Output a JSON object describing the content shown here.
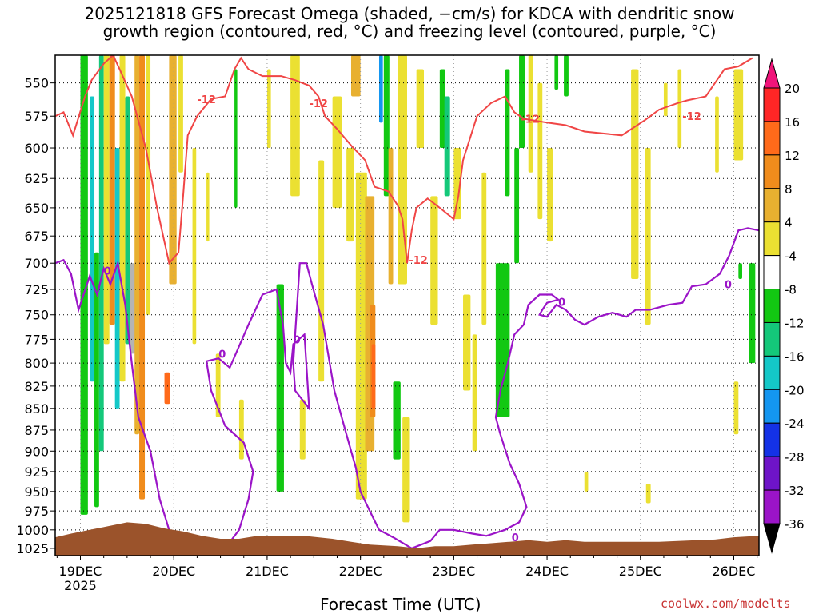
{
  "title": {
    "line1": "2025121818 GFS Forecast Omega (shaded, −cm/s) for KDCA with dendritic snow",
    "line2": "growth region (contoured, red, °C) and freezing level (contoured, purple, °C)"
  },
  "x_axis_label": "Forecast Time (UTC)",
  "credit": "coolwx.com/modelts",
  "colors": {
    "dgz_contour": "#f04646",
    "freezing_contour": "#9b14c8",
    "terrain": "#9b532b",
    "grid": "#000000"
  },
  "chart_data": {
    "type": "heatmap",
    "x_ticks": [
      {
        "label": "19DEC",
        "sub": "2025",
        "day": 0
      },
      {
        "label": "20DEC",
        "sub": "",
        "day": 1
      },
      {
        "label": "21DEC",
        "sub": "",
        "day": 2
      },
      {
        "label": "22DEC",
        "sub": "",
        "day": 3
      },
      {
        "label": "23DEC",
        "sub": "",
        "day": 4
      },
      {
        "label": "24DEC",
        "sub": "",
        "day": 5
      },
      {
        "label": "25DEC",
        "sub": "",
        "day": 6
      },
      {
        "label": "26DEC",
        "sub": "",
        "day": 7
      }
    ],
    "x_range_days": [
      -0.27,
      7.27
    ],
    "y_ticks": [
      550,
      575,
      600,
      625,
      650,
      675,
      700,
      725,
      750,
      775,
      800,
      825,
      850,
      875,
      900,
      925,
      950,
      975,
      1000,
      1025
    ],
    "y_range_hpa": [
      530,
      1035
    ],
    "y_scale": "log-pressure",
    "colorbar": {
      "labels": [
        "20",
        "16",
        "12",
        "8",
        "4",
        "-4",
        "-8",
        "-12",
        "-16",
        "-20",
        "-24",
        "-28",
        "-32",
        "-36"
      ],
      "colors": [
        "#ff2626",
        "#ff6a1a",
        "#f08c1c",
        "#e8b030",
        "#ebe032",
        "#ffffff",
        "#12c812",
        "#14c87a",
        "#14c8c8",
        "#1496f0",
        "#1432e6",
        "#6e14c8",
        "#9b14c8",
        "#b4b4b4"
      ],
      "top_arrow_color": "#f0147a",
      "bottom_arrow_color": "#000000"
    },
    "contour_labels": {
      "dgz": "-12",
      "freezing": "0"
    },
    "dgz_contour": [
      [
        -0.27,
        575
      ],
      [
        -0.18,
        572
      ],
      [
        -0.08,
        590
      ],
      [
        0.05,
        560
      ],
      [
        0.12,
        548
      ],
      [
        0.25,
        536
      ],
      [
        0.35,
        530
      ],
      [
        0.42,
        540
      ],
      [
        0.55,
        560
      ],
      [
        0.7,
        600
      ],
      [
        0.82,
        650
      ],
      [
        0.95,
        700
      ],
      [
        1.05,
        690
      ],
      [
        1.1,
        640
      ],
      [
        1.15,
        590
      ],
      [
        1.25,
        575
      ],
      [
        1.4,
        562
      ],
      [
        1.55,
        560
      ],
      [
        1.65,
        540
      ],
      [
        1.72,
        532
      ],
      [
        1.8,
        540
      ],
      [
        1.95,
        545
      ],
      [
        2.15,
        545
      ],
      [
        2.3,
        548
      ],
      [
        2.45,
        552
      ],
      [
        2.55,
        560
      ],
      [
        2.62,
        575
      ],
      [
        2.75,
        585
      ],
      [
        2.9,
        598
      ],
      [
        3.05,
        610
      ],
      [
        3.15,
        632
      ],
      [
        3.3,
        636
      ],
      [
        3.4,
        648
      ],
      [
        3.45,
        660
      ],
      [
        3.5,
        700
      ],
      [
        3.55,
        670
      ],
      [
        3.6,
        650
      ],
      [
        3.72,
        642
      ],
      [
        3.85,
        650
      ],
      [
        4.0,
        660
      ],
      [
        4.05,
        640
      ],
      [
        4.1,
        610
      ],
      [
        4.25,
        575
      ],
      [
        4.4,
        565
      ],
      [
        4.55,
        560
      ],
      [
        4.65,
        572
      ],
      [
        4.75,
        577
      ],
      [
        5.0,
        580
      ],
      [
        5.2,
        582
      ],
      [
        5.4,
        587
      ],
      [
        5.8,
        590
      ],
      [
        6.05,
        578
      ],
      [
        6.2,
        570
      ],
      [
        6.4,
        565
      ],
      [
        6.5,
        563
      ],
      [
        6.7,
        560
      ],
      [
        6.8,
        550
      ],
      [
        6.9,
        540
      ],
      [
        7.05,
        538
      ],
      [
        7.2,
        532
      ]
    ],
    "freezing_contour": [
      [
        -0.27,
        700
      ],
      [
        -0.18,
        697
      ],
      [
        -0.1,
        710
      ],
      [
        -0.02,
        745
      ],
      [
        0.1,
        712
      ],
      [
        0.18,
        730
      ],
      [
        0.25,
        705
      ],
      [
        0.32,
        720
      ],
      [
        0.4,
        700
      ],
      [
        0.48,
        740
      ],
      [
        0.55,
        800
      ],
      [
        0.62,
        860
      ],
      [
        0.75,
        900
      ],
      [
        0.85,
        960
      ],
      [
        0.95,
        1000
      ],
      [
        1.15,
        1010
      ],
      [
        1.35,
        1015
      ],
      [
        1.55,
        1025
      ],
      [
        1.7,
        1000
      ],
      [
        1.8,
        960
      ],
      [
        1.85,
        925
      ],
      [
        1.75,
        890
      ],
      [
        1.55,
        870
      ],
      [
        1.4,
        830
      ],
      [
        1.35,
        798
      ],
      [
        1.48,
        795
      ],
      [
        1.6,
        805
      ],
      [
        1.8,
        760
      ],
      [
        1.95,
        730
      ],
      [
        2.1,
        725
      ],
      [
        2.17,
        760
      ],
      [
        2.2,
        800
      ],
      [
        2.25,
        810
      ],
      [
        2.28,
        780
      ],
      [
        2.4,
        770
      ],
      [
        2.45,
        850
      ],
      [
        2.3,
        830
      ],
      [
        2.28,
        800
      ],
      [
        2.35,
        700
      ],
      [
        2.42,
        700
      ],
      [
        2.48,
        720
      ],
      [
        2.6,
        760
      ],
      [
        2.72,
        830
      ],
      [
        2.85,
        880
      ],
      [
        2.95,
        920
      ],
      [
        3.0,
        950
      ],
      [
        3.1,
        975
      ],
      [
        3.2,
        1000
      ],
      [
        3.35,
        1010
      ],
      [
        3.55,
        1025
      ],
      [
        3.75,
        1015
      ],
      [
        3.85,
        1000
      ],
      [
        4.0,
        1000
      ],
      [
        4.2,
        1005
      ],
      [
        4.35,
        1008
      ],
      [
        4.55,
        1000
      ],
      [
        4.7,
        990
      ],
      [
        4.78,
        970
      ],
      [
        4.7,
        940
      ],
      [
        4.6,
        915
      ],
      [
        4.5,
        880
      ],
      [
        4.45,
        860
      ],
      [
        4.5,
        830
      ],
      [
        4.58,
        800
      ],
      [
        4.65,
        770
      ],
      [
        4.75,
        760
      ],
      [
        4.8,
        740
      ],
      [
        4.92,
        730
      ],
      [
        5.05,
        730
      ],
      [
        5.12,
        735
      ],
      [
        5.0,
        738
      ],
      [
        4.95,
        745
      ],
      [
        4.92,
        750
      ],
      [
        5.0,
        752
      ],
      [
        5.1,
        740
      ],
      [
        5.2,
        745
      ],
      [
        5.3,
        755
      ],
      [
        5.4,
        760
      ],
      [
        5.55,
        752
      ],
      [
        5.7,
        748
      ],
      [
        5.85,
        752
      ],
      [
        5.95,
        745
      ],
      [
        6.1,
        745
      ],
      [
        6.3,
        740
      ],
      [
        6.45,
        738
      ],
      [
        6.55,
        722
      ],
      [
        6.7,
        720
      ],
      [
        6.85,
        710
      ],
      [
        6.95,
        693
      ],
      [
        7.05,
        670
      ],
      [
        7.15,
        668
      ],
      [
        7.27,
        670
      ]
    ],
    "shaded_regions": [
      {
        "x": 0.0,
        "w": 0.08,
        "p1": 530,
        "p2": 980,
        "level": "-8"
      },
      {
        "x": 0.1,
        "w": 0.05,
        "p1": 560,
        "p2": 820,
        "level": "-16"
      },
      {
        "x": 0.15,
        "w": 0.05,
        "p1": 690,
        "p2": 970,
        "level": "-8"
      },
      {
        "x": 0.2,
        "w": 0.05,
        "p1": 530,
        "p2": 900,
        "level": "-12"
      },
      {
        "x": 0.25,
        "w": 0.06,
        "p1": 530,
        "p2": 780,
        "level": "4"
      },
      {
        "x": 0.31,
        "w": 0.06,
        "p1": 530,
        "p2": 760,
        "level": "12"
      },
      {
        "x": 0.37,
        "w": 0.05,
        "p1": 600,
        "p2": 850,
        "level": "-16"
      },
      {
        "x": 0.42,
        "w": 0.06,
        "p1": 530,
        "p2": 820,
        "level": "4"
      },
      {
        "x": 0.48,
        "w": 0.05,
        "p1": 560,
        "p2": 780,
        "level": "-12"
      },
      {
        "x": 0.53,
        "w": 0.06,
        "p1": 700,
        "p2": 790,
        "level": "-36"
      },
      {
        "x": 0.58,
        "w": 0.05,
        "p1": 530,
        "p2": 880,
        "level": "8"
      },
      {
        "x": 0.63,
        "w": 0.06,
        "p1": 530,
        "p2": 960,
        "level": "12"
      },
      {
        "x": 0.7,
        "w": 0.05,
        "p1": 530,
        "p2": 750,
        "level": "4"
      },
      {
        "x": 0.9,
        "w": 0.06,
        "p1": 810,
        "p2": 845,
        "level": "16"
      },
      {
        "x": 0.95,
        "w": 0.08,
        "p1": 530,
        "p2": 720,
        "level": "8"
      },
      {
        "x": 1.05,
        "w": 0.05,
        "p1": 530,
        "p2": 620,
        "level": "4"
      },
      {
        "x": 1.2,
        "w": 0.04,
        "p1": 600,
        "p2": 780,
        "level": "4"
      },
      {
        "x": 1.35,
        "w": 0.03,
        "p1": 620,
        "p2": 680,
        "level": "4"
      },
      {
        "x": 1.45,
        "w": 0.05,
        "p1": 790,
        "p2": 860,
        "level": "4"
      },
      {
        "x": 1.65,
        "w": 0.03,
        "p1": 540,
        "p2": 650,
        "level": "-8"
      },
      {
        "x": 1.7,
        "w": 0.05,
        "p1": 840,
        "p2": 910,
        "level": "4"
      },
      {
        "x": 2.0,
        "w": 0.04,
        "p1": 540,
        "p2": 600,
        "level": "4"
      },
      {
        "x": 2.1,
        "w": 0.08,
        "p1": 720,
        "p2": 950,
        "level": "-8"
      },
      {
        "x": 2.25,
        "w": 0.1,
        "p1": 530,
        "p2": 640,
        "level": "4"
      },
      {
        "x": 2.35,
        "w": 0.06,
        "p1": 840,
        "p2": 910,
        "level": "4"
      },
      {
        "x": 2.55,
        "w": 0.06,
        "p1": 610,
        "p2": 820,
        "level": "4"
      },
      {
        "x": 2.7,
        "w": 0.1,
        "p1": 560,
        "p2": 650,
        "level": "4"
      },
      {
        "x": 2.85,
        "w": 0.08,
        "p1": 600,
        "p2": 680,
        "level": "4"
      },
      {
        "x": 2.9,
        "w": 0.1,
        "p1": 530,
        "p2": 560,
        "level": "8"
      },
      {
        "x": 2.95,
        "w": 0.12,
        "p1": 620,
        "p2": 960,
        "level": "4"
      },
      {
        "x": 3.05,
        "w": 0.1,
        "p1": 640,
        "p2": 900,
        "level": "8"
      },
      {
        "x": 3.1,
        "w": 0.06,
        "p1": 740,
        "p2": 860,
        "level": "12"
      },
      {
        "x": 3.12,
        "w": 0.04,
        "p1": 780,
        "p2": 850,
        "level": "16"
      },
      {
        "x": 3.2,
        "w": 0.04,
        "p1": 530,
        "p2": 580,
        "level": "-20"
      },
      {
        "x": 3.25,
        "w": 0.06,
        "p1": 530,
        "p2": 640,
        "level": "-8"
      },
      {
        "x": 3.3,
        "w": 0.05,
        "p1": 600,
        "p2": 720,
        "level": "8"
      },
      {
        "x": 3.35,
        "w": 0.08,
        "p1": 820,
        "p2": 910,
        "level": "-8"
      },
      {
        "x": 3.4,
        "w": 0.1,
        "p1": 530,
        "p2": 720,
        "level": "4"
      },
      {
        "x": 3.45,
        "w": 0.08,
        "p1": 860,
        "p2": 990,
        "level": "4"
      },
      {
        "x": 3.6,
        "w": 0.08,
        "p1": 540,
        "p2": 600,
        "level": "4"
      },
      {
        "x": 3.75,
        "w": 0.08,
        "p1": 640,
        "p2": 760,
        "level": "4"
      },
      {
        "x": 3.85,
        "w": 0.06,
        "p1": 540,
        "p2": 600,
        "level": "-8"
      },
      {
        "x": 3.9,
        "w": 0.06,
        "p1": 560,
        "p2": 640,
        "level": "-12"
      },
      {
        "x": 4.0,
        "w": 0.08,
        "p1": 600,
        "p2": 660,
        "level": "4"
      },
      {
        "x": 4.1,
        "w": 0.08,
        "p1": 730,
        "p2": 830,
        "level": "4"
      },
      {
        "x": 4.2,
        "w": 0.05,
        "p1": 770,
        "p2": 900,
        "level": "4"
      },
      {
        "x": 4.3,
        "w": 0.05,
        "p1": 620,
        "p2": 760,
        "level": "4"
      },
      {
        "x": 4.45,
        "w": 0.15,
        "p1": 700,
        "p2": 860,
        "level": "-8"
      },
      {
        "x": 4.55,
        "w": 0.05,
        "p1": 540,
        "p2": 640,
        "level": "-8"
      },
      {
        "x": 4.65,
        "w": 0.05,
        "p1": 600,
        "p2": 700,
        "level": "-8"
      },
      {
        "x": 4.7,
        "w": 0.06,
        "p1": 530,
        "p2": 600,
        "level": "-8"
      },
      {
        "x": 4.8,
        "w": 0.05,
        "p1": 530,
        "p2": 620,
        "level": "4"
      },
      {
        "x": 4.9,
        "w": 0.05,
        "p1": 550,
        "p2": 660,
        "level": "4"
      },
      {
        "x": 5.0,
        "w": 0.06,
        "p1": 600,
        "p2": 680,
        "level": "4"
      },
      {
        "x": 5.08,
        "w": 0.04,
        "p1": 530,
        "p2": 555,
        "level": "-8"
      },
      {
        "x": 5.18,
        "w": 0.05,
        "p1": 530,
        "p2": 560,
        "level": "-8"
      },
      {
        "x": 5.4,
        "w": 0.04,
        "p1": 925,
        "p2": 950,
        "level": "4"
      },
      {
        "x": 5.9,
        "w": 0.08,
        "p1": 540,
        "p2": 715,
        "level": "4"
      },
      {
        "x": 6.05,
        "w": 0.06,
        "p1": 600,
        "p2": 760,
        "level": "4"
      },
      {
        "x": 6.06,
        "w": 0.05,
        "p1": 940,
        "p2": 965,
        "level": "4"
      },
      {
        "x": 6.25,
        "w": 0.04,
        "p1": 550,
        "p2": 575,
        "level": "4"
      },
      {
        "x": 6.4,
        "w": 0.04,
        "p1": 540,
        "p2": 600,
        "level": "4"
      },
      {
        "x": 6.8,
        "w": 0.04,
        "p1": 560,
        "p2": 620,
        "level": "4"
      },
      {
        "x": 7.0,
        "w": 0.1,
        "p1": 540,
        "p2": 610,
        "level": "4"
      },
      {
        "x": 7.05,
        "w": 0.04,
        "p1": 700,
        "p2": 715,
        "level": "-8"
      },
      {
        "x": 7.0,
        "w": 0.05,
        "p1": 820,
        "p2": 880,
        "level": "4"
      },
      {
        "x": 7.16,
        "w": 0.07,
        "p1": 700,
        "p2": 800,
        "level": "-8"
      }
    ],
    "terrain": [
      [
        -0.27,
        1010
      ],
      [
        -0.1,
        1005
      ],
      [
        0.1,
        1000
      ],
      [
        0.3,
        995
      ],
      [
        0.5,
        990
      ],
      [
        0.7,
        992
      ],
      [
        0.9,
        998
      ],
      [
        1.1,
        1002
      ],
      [
        1.3,
        1008
      ],
      [
        1.5,
        1012
      ],
      [
        1.7,
        1012
      ],
      [
        1.9,
        1008
      ],
      [
        2.1,
        1008
      ],
      [
        2.4,
        1008
      ],
      [
        2.7,
        1012
      ],
      [
        2.9,
        1016
      ],
      [
        3.1,
        1020
      ],
      [
        3.4,
        1022
      ],
      [
        3.6,
        1025
      ],
      [
        3.8,
        1022
      ],
      [
        4.0,
        1022
      ],
      [
        4.2,
        1020
      ],
      [
        4.4,
        1018
      ],
      [
        4.6,
        1016
      ],
      [
        4.8,
        1014
      ],
      [
        5.0,
        1016
      ],
      [
        5.2,
        1014
      ],
      [
        5.4,
        1016
      ],
      [
        5.6,
        1016
      ],
      [
        5.8,
        1016
      ],
      [
        6.0,
        1016
      ],
      [
        6.2,
        1016
      ],
      [
        6.4,
        1015
      ],
      [
        6.6,
        1014
      ],
      [
        6.8,
        1013
      ],
      [
        7.0,
        1010
      ],
      [
        7.27,
        1008
      ]
    ]
  }
}
